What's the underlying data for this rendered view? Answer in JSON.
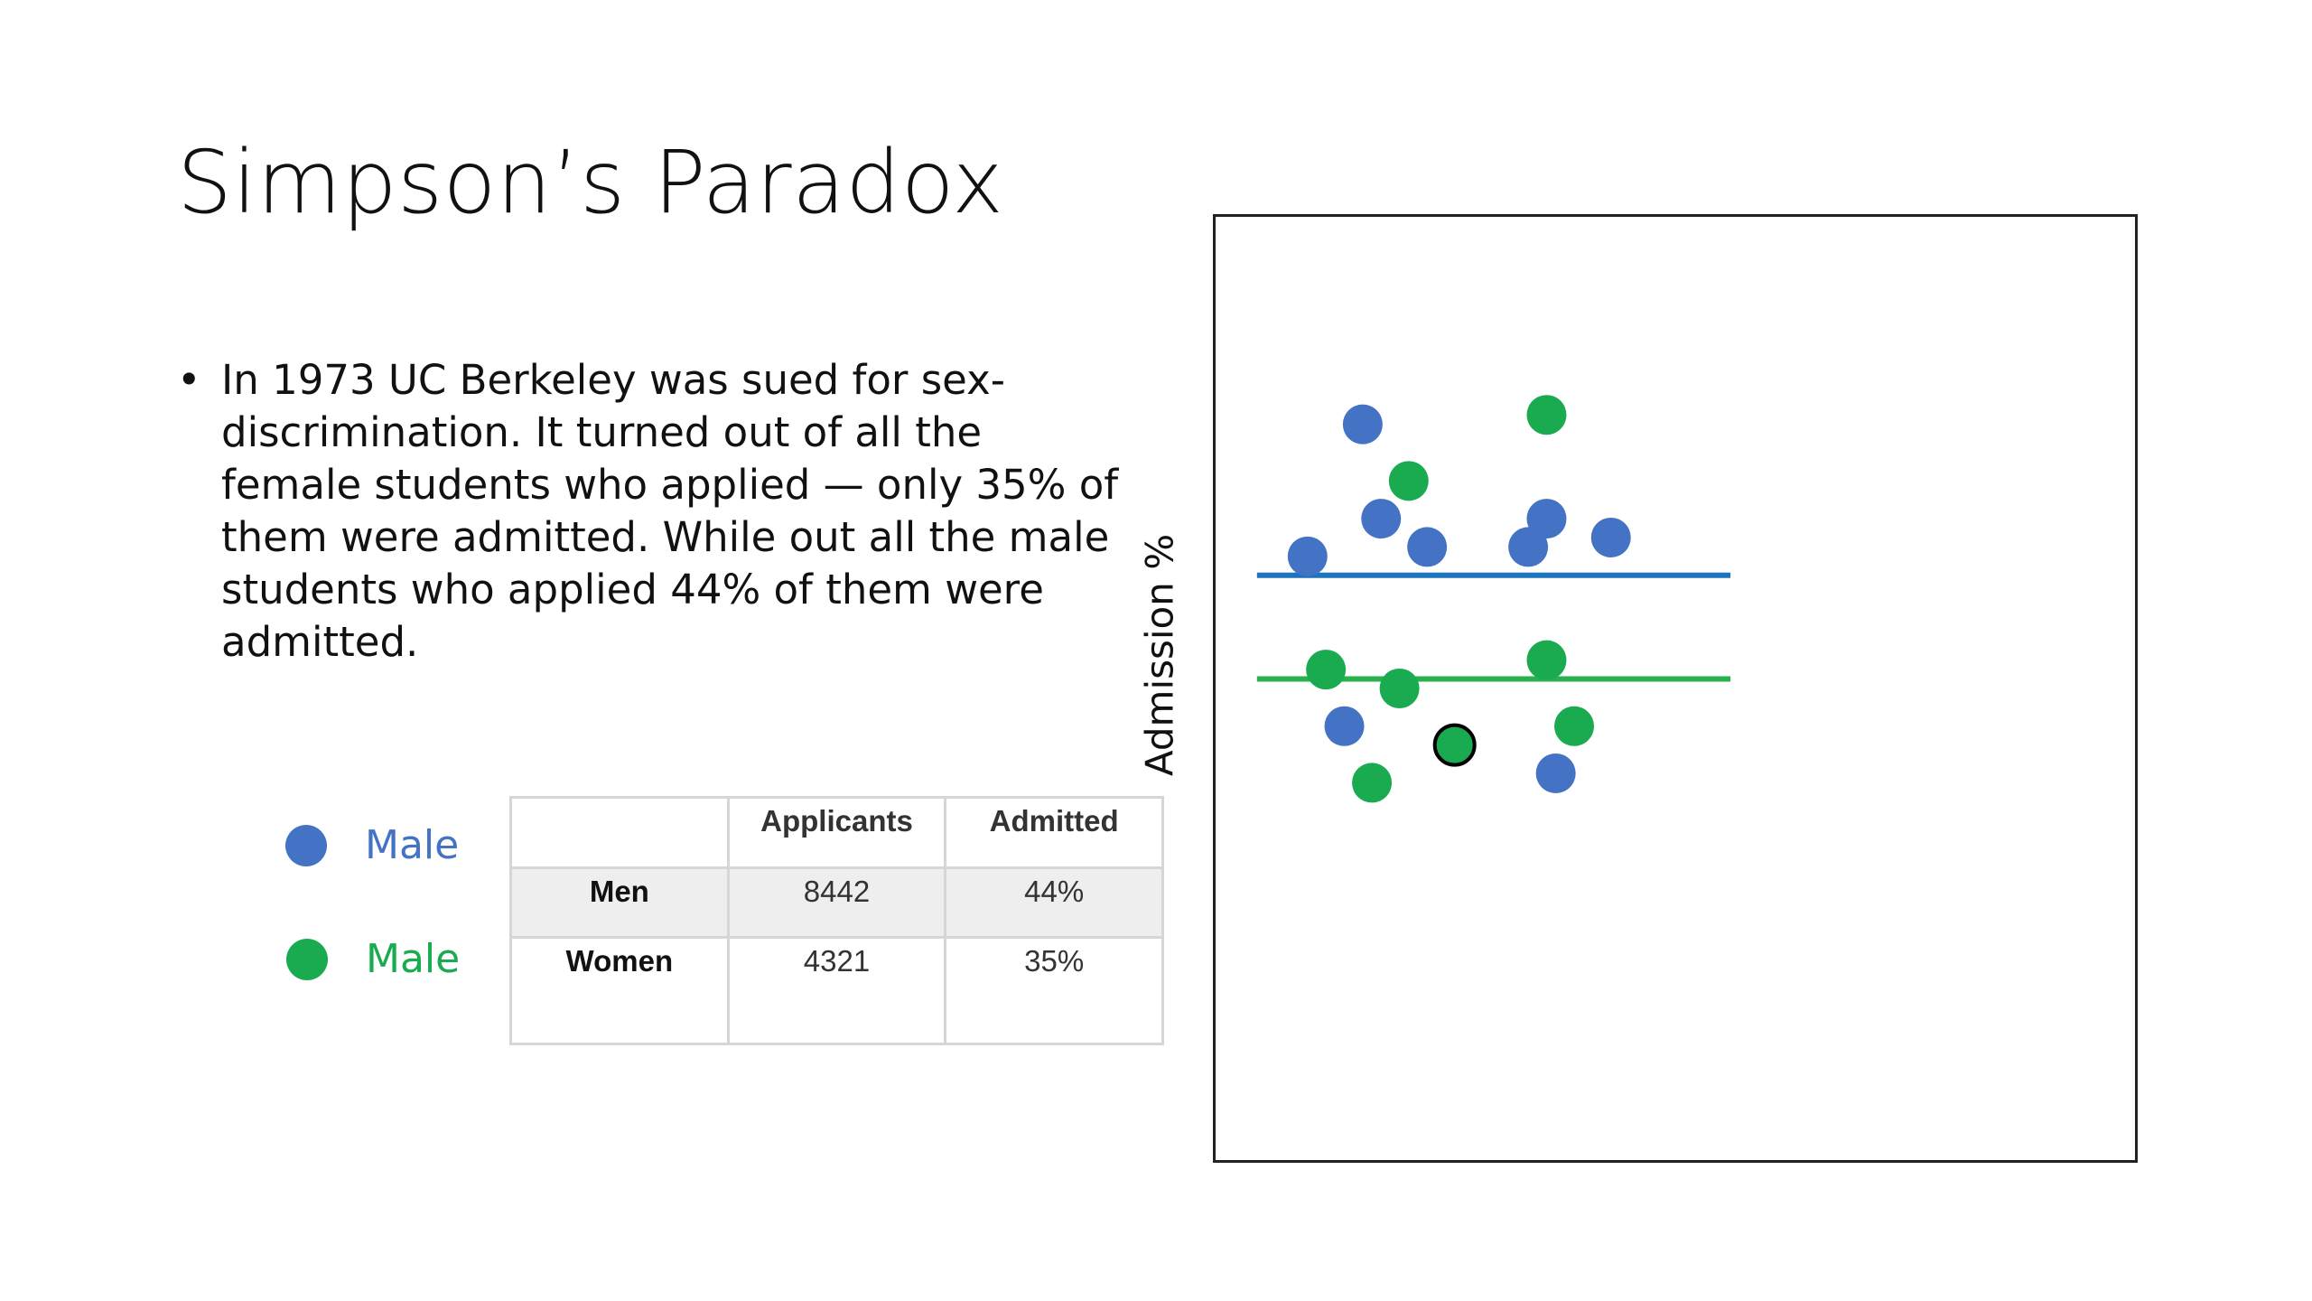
{
  "slide": {
    "title": "Simpson’s Paradox",
    "bullet_symbol": "•",
    "bullet_text": "In 1973 UC Berkeley was sued for sex-discrimination. It turned out of all the female students who applied — only 35% of them were admitted. While out all the male students who applied 44% of them were admitted."
  },
  "legend": [
    {
      "label": "Male",
      "color": "#4472c4"
    },
    {
      "label": "Male",
      "color": "#1aab50"
    }
  ],
  "table": {
    "headers": [
      "",
      "Applicants",
      "Admitted"
    ],
    "rows": [
      [
        "Men",
        "8442",
        "44%"
      ],
      [
        "Women",
        "4321",
        "35%"
      ]
    ]
  },
  "colors": {
    "blue": "#4472c4",
    "green": "#1aab50",
    "blue_line": "#1e73be",
    "green_line": "#28b14c",
    "highlight_outline": "#000000"
  },
  "chart_data": {
    "type": "scatter",
    "title": "",
    "xlabel": "",
    "ylabel": "Admission %",
    "ticks": "none",
    "grid": false,
    "series": [
      {
        "color": "blue",
        "points": [
          [
            1.6,
            0.78
          ],
          [
            3.6,
            0.68
          ],
          [
            1.8,
            0.68
          ],
          [
            2.3,
            0.65
          ],
          [
            4.3,
            0.66
          ],
          [
            1.0,
            0.64
          ],
          [
            3.4,
            0.65
          ],
          [
            1.4,
            0.46
          ],
          [
            3.7,
            0.41
          ]
        ],
        "mean_line": 0.62
      },
      {
        "color": "green",
        "points": [
          [
            3.6,
            0.79
          ],
          [
            2.1,
            0.72
          ],
          [
            1.2,
            0.52
          ],
          [
            2.0,
            0.5
          ],
          [
            3.6,
            0.53
          ],
          [
            3.9,
            0.46
          ],
          [
            2.6,
            0.44
          ],
          [
            1.7,
            0.4
          ]
        ],
        "mean_line": 0.51
      }
    ],
    "highlighted_point": {
      "x": 2.6,
      "y": 0.44,
      "outline": "black"
    },
    "xlim": [
      0,
      10
    ],
    "ylim": [
      0,
      1
    ]
  }
}
